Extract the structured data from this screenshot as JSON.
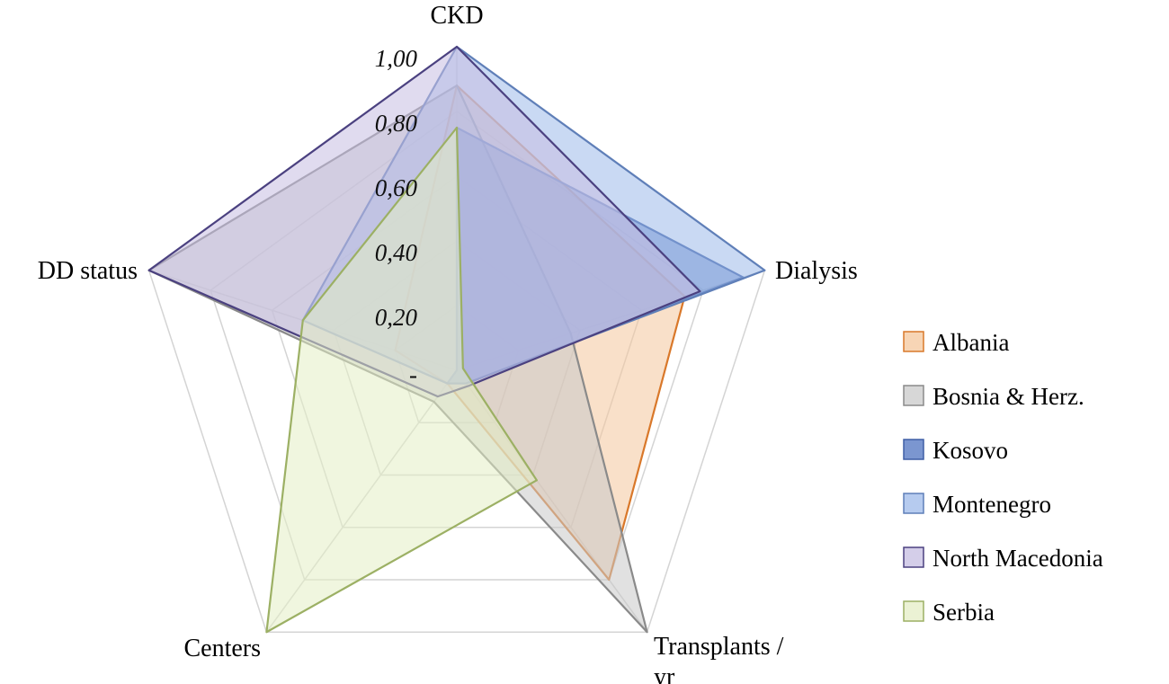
{
  "chart_data": {
    "type": "radar",
    "axes": [
      "CKD",
      "Dialysis",
      "Transplants / yr",
      "Centers",
      "DD status"
    ],
    "axis_label_lines": [
      [
        "CKD"
      ],
      [
        "Dialysis"
      ],
      [
        "Transplants /",
        "yr"
      ],
      [
        "Centers"
      ],
      [
        "DD status"
      ]
    ],
    "range": [
      0,
      1
    ],
    "ticks": [
      0,
      0.2,
      0.4,
      0.6,
      0.8,
      1.0
    ],
    "tick_labels": [
      "-",
      "0,20",
      "0,40",
      "0,60",
      "0,80",
      "1,00"
    ],
    "grid": true,
    "legend_position": "right",
    "series": [
      {
        "name": "Albania",
        "values": [
          0.88,
          0.74,
          0.8,
          0.05,
          0.2
        ],
        "fill": "#f4c79c",
        "stroke": "#d9782a"
      },
      {
        "name": "Bosnia & Herz.",
        "values": [
          0.88,
          0.37,
          1.0,
          0.12,
          1.0
        ],
        "fill": "#c9c9c9",
        "stroke": "#8a8a8a"
      },
      {
        "name": "Kosovo",
        "values": [
          0.75,
          0.93,
          0.05,
          0.05,
          0.0
        ],
        "fill": "#4f73c0",
        "stroke": "#3f5fa6"
      },
      {
        "name": "Montenegro",
        "values": [
          1.0,
          1.0,
          0.05,
          0.05,
          0.5
        ],
        "fill": "#9db9ea",
        "stroke": "#5f7fb8"
      },
      {
        "name": "North Macedonia",
        "values": [
          1.0,
          0.79,
          0.06,
          0.1,
          1.0
        ],
        "fill": "#c6bde2",
        "stroke": "#4b4180"
      },
      {
        "name": "Serbia",
        "values": [
          0.75,
          0.02,
          0.42,
          1.0,
          0.5
        ],
        "fill": "#e4eec5",
        "stroke": "#9cb064"
      }
    ]
  }
}
